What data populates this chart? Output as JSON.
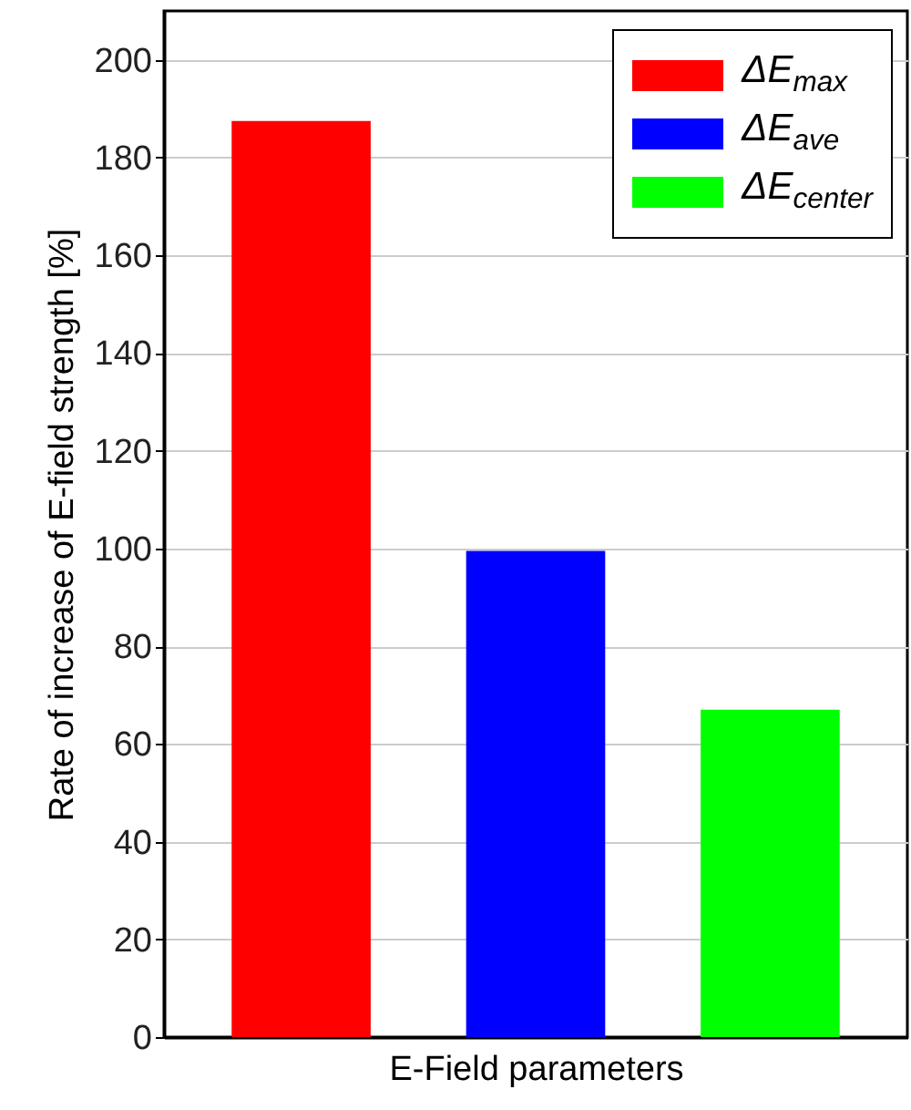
{
  "chart_data": {
    "type": "bar",
    "xlabel": "E-Field parameters",
    "ylabel": "Rate of increase of E-field strength [%]",
    "categories": [
      null,
      null,
      null
    ],
    "series": [
      {
        "name": "ΔE$_{max}$",
        "color": "#ff0000",
        "values": [
          187.5,
          null,
          null
        ]
      },
      {
        "name": "ΔE$_{ave}$",
        "color": "#0000ff",
        "values": [
          null,
          99.5,
          null
        ]
      },
      {
        "name": "ΔE$_{center}$",
        "color": "#00ff00",
        "values": [
          null,
          null,
          67
        ]
      }
    ],
    "ylim": [
      0,
      210
    ],
    "yticks": [
      0,
      20,
      40,
      60,
      80,
      100,
      120,
      140,
      160,
      180,
      200
    ],
    "grid": "y",
    "legend": "top right",
    "tick_labels": "y"
  }
}
